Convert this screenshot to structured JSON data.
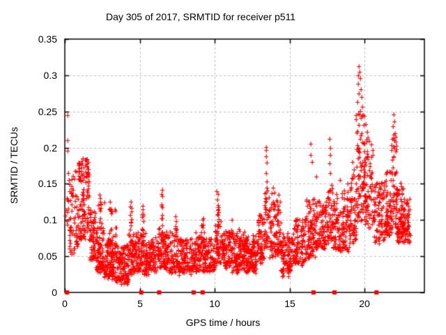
{
  "chart_data": {
    "type": "scatter",
    "title": "Day 305 of 2017, SRMTID for receiver p511",
    "xlabel": "GPS time / hours",
    "ylabel": "SRMTID / TECUs",
    "xlim": [
      0,
      24
    ],
    "ylim": [
      0,
      0.35
    ],
    "xticks": {
      "values": [
        0,
        5,
        10,
        15,
        20
      ],
      "labels": [
        "0",
        "5",
        "10",
        "15",
        "20"
      ]
    },
    "yticks": {
      "values": [
        0,
        0.05,
        0.1,
        0.15,
        0.2,
        0.25,
        0.3,
        0.35
      ],
      "labels": [
        "0",
        "0.05",
        "0.1",
        "0.15",
        "0.2",
        "0.25",
        "0.3",
        "0.35"
      ]
    },
    "grid": true,
    "legend": null,
    "marker": "plus",
    "colors": {
      "points": "#ff0000",
      "grid": "#bbbbbb",
      "axis": "#000000",
      "background": "#ffffff"
    },
    "baseline_square_markers_hours": [
      0.15,
      5.1,
      6.3,
      8.6,
      9.2,
      16.6,
      18.0,
      20.8
    ],
    "seed": 20170305,
    "density_segments": [
      [
        0.05,
        0.4,
        16,
        0.085,
        0.135
      ],
      [
        0.3,
        0.9,
        60,
        0.055,
        0.165
      ],
      [
        0.9,
        1.65,
        120,
        0.075,
        0.185
      ],
      [
        1.65,
        2.1,
        70,
        0.045,
        0.115
      ],
      [
        2.1,
        2.6,
        80,
        0.03,
        0.09
      ],
      [
        2.2,
        2.45,
        12,
        0.09,
        0.13
      ],
      [
        2.6,
        3.25,
        110,
        0.022,
        0.075
      ],
      [
        2.95,
        3.15,
        10,
        0.075,
        0.12
      ],
      [
        3.25,
        4.25,
        150,
        0.015,
        0.065
      ],
      [
        3.3,
        3.45,
        8,
        0.065,
        0.112
      ],
      [
        4.25,
        4.65,
        60,
        0.028,
        0.08
      ],
      [
        4.35,
        4.5,
        8,
        0.08,
        0.122
      ],
      [
        4.65,
        5.45,
        100,
        0.028,
        0.08
      ],
      [
        5.1,
        5.35,
        10,
        0.08,
        0.118
      ],
      [
        5.45,
        6.25,
        100,
        0.028,
        0.075
      ],
      [
        6.25,
        6.7,
        60,
        0.035,
        0.095
      ],
      [
        6.45,
        6.6,
        8,
        0.095,
        0.14
      ],
      [
        6.7,
        7.6,
        110,
        0.03,
        0.082
      ],
      [
        7.3,
        7.5,
        8,
        0.082,
        0.105
      ],
      [
        7.6,
        8.5,
        110,
        0.028,
        0.075
      ],
      [
        8.5,
        9.3,
        95,
        0.03,
        0.08
      ],
      [
        9.1,
        9.3,
        8,
        0.08,
        0.1
      ],
      [
        9.3,
        10.0,
        85,
        0.03,
        0.075
      ],
      [
        10.0,
        10.45,
        55,
        0.04,
        0.1
      ],
      [
        10.1,
        10.3,
        10,
        0.1,
        0.138
      ],
      [
        10.45,
        11.1,
        80,
        0.035,
        0.085
      ],
      [
        11.1,
        12.0,
        130,
        0.03,
        0.085
      ],
      [
        12.0,
        12.9,
        125,
        0.03,
        0.08
      ],
      [
        12.9,
        13.3,
        60,
        0.04,
        0.105
      ],
      [
        13.3,
        13.6,
        40,
        0.06,
        0.15
      ],
      [
        13.6,
        14.4,
        100,
        0.05,
        0.135
      ],
      [
        14.4,
        15.2,
        95,
        0.025,
        0.08
      ],
      [
        15.2,
        16.1,
        105,
        0.04,
        0.105
      ],
      [
        16.1,
        16.7,
        80,
        0.05,
        0.13
      ],
      [
        16.7,
        17.5,
        95,
        0.06,
        0.13
      ],
      [
        17.5,
        17.9,
        50,
        0.07,
        0.155
      ],
      [
        17.9,
        19.0,
        130,
        0.06,
        0.14
      ],
      [
        19.0,
        19.45,
        60,
        0.07,
        0.16
      ],
      [
        19.45,
        20.0,
        85,
        0.1,
        0.25
      ],
      [
        20.0,
        20.6,
        75,
        0.09,
        0.21
      ],
      [
        20.6,
        21.4,
        90,
        0.07,
        0.15
      ],
      [
        21.4,
        21.8,
        60,
        0.08,
        0.17
      ],
      [
        21.8,
        22.15,
        55,
        0.09,
        0.215
      ],
      [
        22.15,
        22.6,
        75,
        0.07,
        0.15
      ],
      [
        22.6,
        23.05,
        60,
        0.07,
        0.13
      ]
    ],
    "outlier_points": [
      [
        0.18,
        0.245
      ],
      [
        0.2,
        0.21
      ],
      [
        0.17,
        0.196
      ],
      [
        0.22,
        0.165
      ],
      [
        0.28,
        0.155
      ],
      [
        0.12,
        0.13
      ],
      [
        0.95,
        0.168
      ],
      [
        1.1,
        0.178
      ],
      [
        1.2,
        0.185
      ],
      [
        1.35,
        0.183
      ],
      [
        1.5,
        0.175
      ],
      [
        1.6,
        0.16
      ],
      [
        2.32,
        0.135
      ],
      [
        2.35,
        0.125
      ],
      [
        2.65,
        0.124
      ],
      [
        3.02,
        0.125
      ],
      [
        3.08,
        0.113
      ],
      [
        3.35,
        0.115
      ],
      [
        4.42,
        0.125
      ],
      [
        4.45,
        0.112
      ],
      [
        5.2,
        0.12
      ],
      [
        5.25,
        0.108
      ],
      [
        6.5,
        0.142
      ],
      [
        6.52,
        0.133
      ],
      [
        7.4,
        0.105
      ],
      [
        9.2,
        0.1
      ],
      [
        10.15,
        0.14
      ],
      [
        10.18,
        0.128
      ],
      [
        10.22,
        0.118
      ],
      [
        11.15,
        0.1
      ],
      [
        13.0,
        0.105
      ],
      [
        13.42,
        0.201
      ],
      [
        13.45,
        0.197
      ],
      [
        13.43,
        0.188
      ],
      [
        13.47,
        0.179
      ],
      [
        13.44,
        0.165
      ],
      [
        13.5,
        0.153
      ],
      [
        13.48,
        0.145
      ],
      [
        13.9,
        0.145
      ],
      [
        14.0,
        0.138
      ],
      [
        16.4,
        0.205
      ],
      [
        16.42,
        0.19
      ],
      [
        16.5,
        0.18
      ],
      [
        16.8,
        0.16
      ],
      [
        17.68,
        0.212
      ],
      [
        17.7,
        0.2
      ],
      [
        17.72,
        0.19
      ],
      [
        17.66,
        0.178
      ],
      [
        17.74,
        0.165
      ],
      [
        18.35,
        0.155
      ],
      [
        18.9,
        0.15
      ],
      [
        19.2,
        0.18
      ],
      [
        19.3,
        0.17
      ],
      [
        19.62,
        0.312
      ],
      [
        19.68,
        0.305
      ],
      [
        19.6,
        0.3
      ],
      [
        19.72,
        0.296
      ],
      [
        19.58,
        0.288
      ],
      [
        19.75,
        0.281
      ],
      [
        19.65,
        0.275
      ],
      [
        19.8,
        0.27
      ],
      [
        19.55,
        0.263
      ],
      [
        19.85,
        0.256
      ],
      [
        19.7,
        0.251
      ],
      [
        20.1,
        0.232
      ],
      [
        20.18,
        0.222
      ],
      [
        20.25,
        0.214
      ],
      [
        21.95,
        0.246
      ],
      [
        22.0,
        0.236
      ],
      [
        21.9,
        0.229
      ],
      [
        22.05,
        0.22
      ],
      [
        21.85,
        0.212
      ]
    ]
  }
}
